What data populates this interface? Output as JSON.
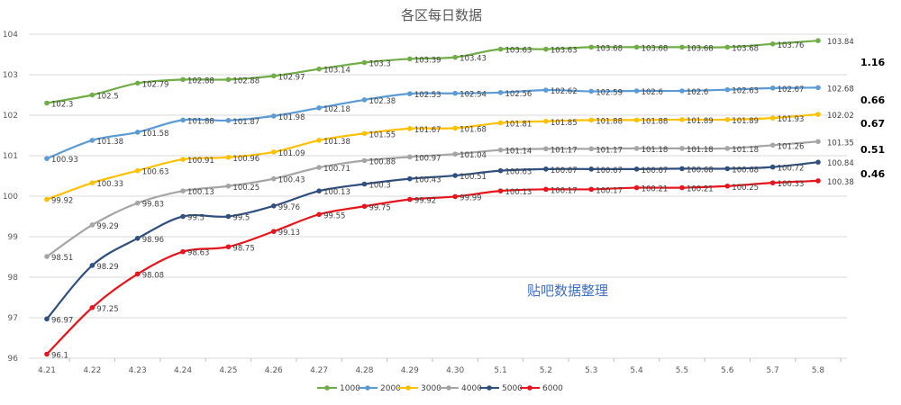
{
  "chart_data": {
    "type": "line",
    "title": "各区每日数据",
    "categories": [
      "4.21",
      "4.22",
      "4.23",
      "4.24",
      "4.25",
      "4.26",
      "4.27",
      "4.28",
      "4.29",
      "4.30",
      "5.1",
      "5.2",
      "5.3",
      "5.4",
      "5.5",
      "5.6",
      "5.7",
      "5.8"
    ],
    "ylim": [
      96,
      104
    ],
    "yticks": [
      96,
      97,
      98,
      99,
      100,
      101,
      102,
      103,
      104
    ],
    "grid": true,
    "legend_position": "bottom",
    "series": [
      {
        "name": "1000",
        "color": "#70ad47",
        "values": [
          102.3,
          102.5,
          102.79,
          102.88,
          102.88,
          102.97,
          103.14,
          103.3,
          103.39,
          103.43,
          103.63,
          103.63,
          103.68,
          103.68,
          103.68,
          103.68,
          103.76,
          103.84
        ]
      },
      {
        "name": "2000",
        "color": "#5b9bd5",
        "values": [
          100.93,
          101.38,
          101.58,
          101.88,
          101.87,
          101.98,
          102.18,
          102.38,
          102.53,
          102.54,
          102.56,
          102.62,
          102.59,
          102.6,
          102.6,
          102.63,
          102.67,
          102.68
        ]
      },
      {
        "name": "3000",
        "color": "#ffc000",
        "values": [
          99.92,
          100.33,
          100.63,
          100.91,
          100.96,
          101.09,
          101.38,
          101.55,
          101.67,
          101.68,
          101.81,
          101.85,
          101.88,
          101.88,
          101.89,
          101.89,
          101.93,
          102.02
        ]
      },
      {
        "name": "4000",
        "color": "#a5a5a5",
        "values": [
          98.51,
          99.29,
          99.83,
          100.13,
          100.25,
          100.43,
          100.71,
          100.88,
          100.97,
          101.04,
          101.14,
          101.17,
          101.17,
          101.18,
          101.18,
          101.18,
          101.26,
          101.35
        ]
      },
      {
        "name": "5000",
        "color": "#2f4f7f",
        "values": [
          96.97,
          98.29,
          98.96,
          99.5,
          99.5,
          99.76,
          100.13,
          100.3,
          100.43,
          100.51,
          100.63,
          100.67,
          100.67,
          100.67,
          100.68,
          100.68,
          100.72,
          100.84
        ]
      },
      {
        "name": "6000",
        "color": "#e8141b",
        "values": [
          96.1,
          97.25,
          98.08,
          98.63,
          98.75,
          99.13,
          99.55,
          99.75,
          99.92,
          99.99,
          100.13,
          100.17,
          100.17,
          100.21,
          100.21,
          100.25,
          100.33,
          100.38
        ]
      }
    ],
    "side_annotations": [
      "1.16",
      "0.66",
      "0.67",
      "0.51",
      "0.46"
    ],
    "watermark": "贴吧数据整理"
  }
}
